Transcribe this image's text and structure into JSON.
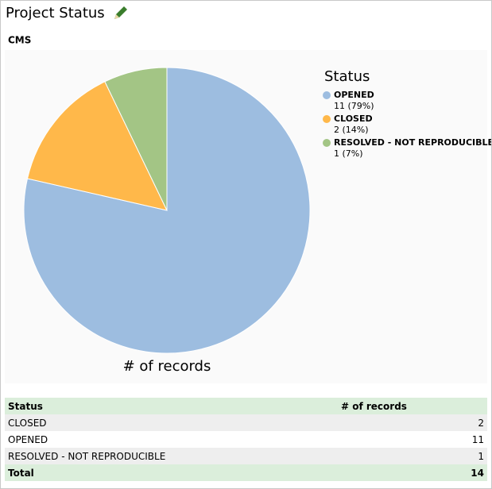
{
  "header": {
    "title": "Project Status",
    "subtitle": "CMS"
  },
  "chart_data": {
    "type": "pie",
    "legend_title": "Status",
    "label": "# of records",
    "categories": [
      "OPENED",
      "CLOSED",
      "RESOLVED - NOT REPRODUCIBLE"
    ],
    "values": [
      11,
      2,
      1
    ],
    "value_labels": [
      "11 (79%)",
      "2 (14%)",
      "1 (7%)"
    ],
    "colors": [
      "#9dbde0",
      "#ffb84a",
      "#a3c585"
    ],
    "legend": "right"
  },
  "table": {
    "columns": [
      "Status",
      "# of records"
    ],
    "rows": [
      [
        "CLOSED",
        2
      ],
      [
        "OPENED",
        11
      ],
      [
        "RESOLVED - NOT REPRODUCIBLE",
        1
      ]
    ],
    "total": [
      "Total",
      14
    ]
  }
}
